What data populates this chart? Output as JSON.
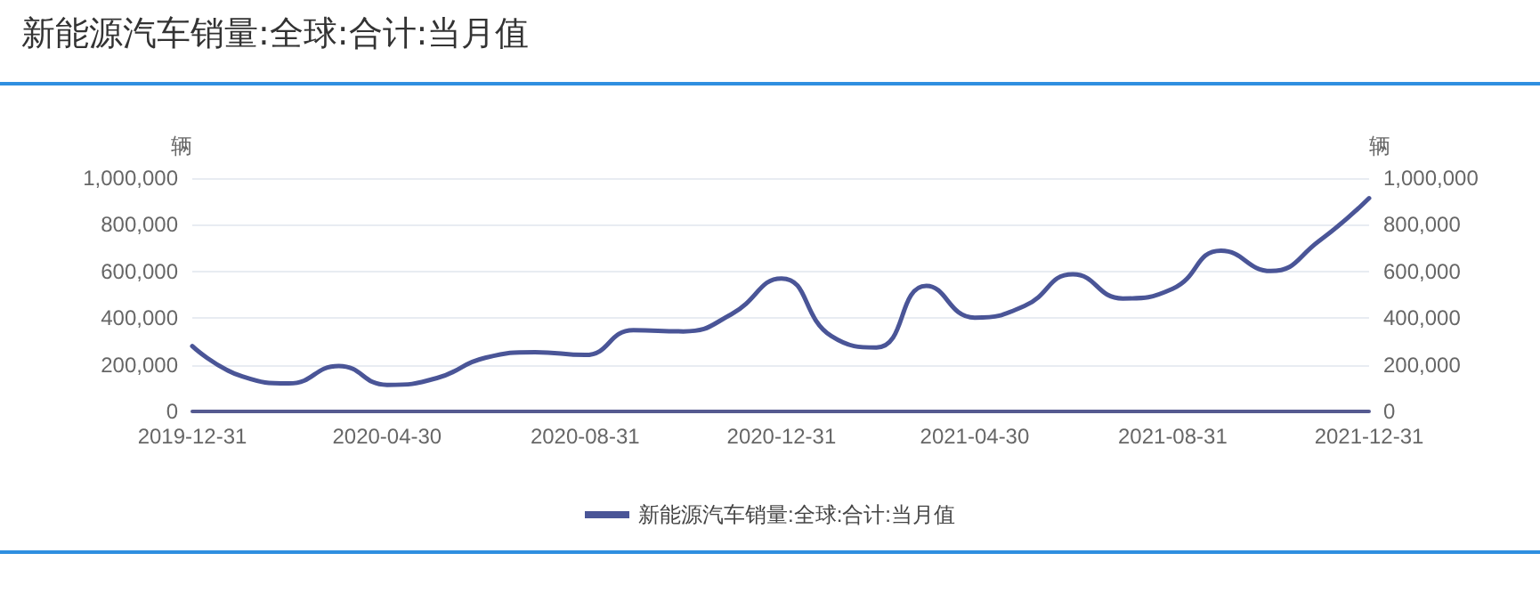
{
  "chart_data": {
    "type": "line",
    "title": "新能源汽车销量:全球:合计:当月值",
    "ylabel": "辆",
    "y2label": "辆",
    "x": [
      "2019-12-31",
      "2020-01-31",
      "2020-02-29",
      "2020-03-31",
      "2020-04-30",
      "2020-05-31",
      "2020-06-30",
      "2020-07-31",
      "2020-08-31",
      "2020-09-30",
      "2020-10-31",
      "2020-11-30",
      "2020-12-31",
      "2021-01-31",
      "2021-02-28",
      "2021-03-31",
      "2021-04-30",
      "2021-05-31",
      "2021-06-30",
      "2021-07-31",
      "2021-08-31",
      "2021-09-30",
      "2021-10-31",
      "2021-11-30",
      "2021-12-31"
    ],
    "xlim": [
      "2019-12-31",
      "2021-12-31"
    ],
    "xticks": [
      "2019-12-31",
      "2020-04-30",
      "2020-08-31",
      "2020-12-31",
      "2021-04-30",
      "2021-08-31",
      "2021-12-31"
    ],
    "series": [
      {
        "name": "新能源汽车销量:全球:合计:当月值",
        "color": "#4a5597",
        "values": [
          280000,
          150000,
          120000,
          195000,
          114000,
          143000,
          230000,
          254000,
          242000,
          348000,
          343000,
          417000,
          570000,
          323000,
          274000,
          538000,
          402000,
          452000,
          588000,
          484000,
          526000,
          689000,
          602000,
          731000,
          914000
        ]
      }
    ],
    "ylim": [
      0,
      1000000
    ],
    "yticks": [
      0,
      {
        "value": 200000,
        "label": "200,000"
      },
      {
        "value": 400000,
        "label": "400,000"
      },
      {
        "value": 600000,
        "label": "600,000"
      },
      {
        "value": 800000,
        "label": "800,000"
      },
      {
        "value": 1000000,
        "label": "1,000,000"
      }
    ],
    "y2lim": [
      0,
      1000000
    ],
    "y2ticks": [
      0,
      {
        "value": 200000,
        "label": "200,000"
      },
      {
        "value": 400000,
        "label": "400,000"
      },
      {
        "value": 600000,
        "label": "600,000"
      },
      {
        "value": 800000,
        "label": "800,000"
      },
      {
        "value": 1000000,
        "label": "1,000,000"
      }
    ],
    "grid": "y",
    "legend": "bottom",
    "marker": "none",
    "line_style": "solid"
  }
}
